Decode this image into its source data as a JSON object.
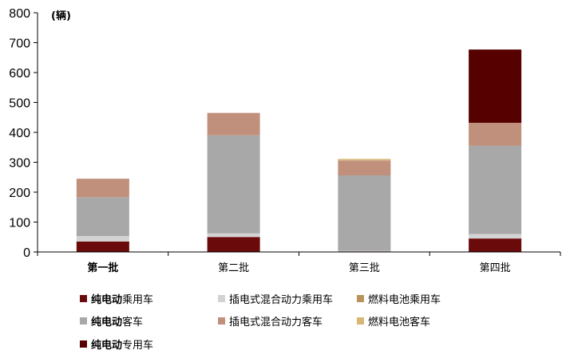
{
  "chart_data": {
    "type": "bar",
    "stacked": true,
    "unit": "(辆)",
    "categories": [
      "第一批",
      "第二批",
      "第三批",
      "第四批"
    ],
    "ylim": [
      0,
      800
    ],
    "yticks": [
      0,
      100,
      200,
      300,
      400,
      500,
      600,
      700,
      800
    ],
    "series": [
      {
        "name_bold": "纯电动",
        "name_rest": "乘用车",
        "color": "#6b0a0a",
        "values": [
          35,
          50,
          2,
          45
        ]
      },
      {
        "name_bold": "",
        "name_rest": "插电式混合动力乘用车",
        "color": "#d3d3d3",
        "values": [
          18,
          12,
          2,
          15
        ]
      },
      {
        "name_bold": "",
        "name_rest": "燃料电池乘用车",
        "color": "#b8935a",
        "values": [
          0,
          0,
          0,
          0
        ]
      },
      {
        "name_bold": "纯电动",
        "name_rest": "客车",
        "color": "#a8a8a8",
        "values": [
          130,
          328,
          252,
          295
        ]
      },
      {
        "name_bold": "",
        "name_rest": "插电式混合动力客车",
        "color": "#c0907c",
        "values": [
          62,
          75,
          50,
          77
        ]
      },
      {
        "name_bold": "",
        "name_rest": "燃料电池客车",
        "color": "#d8b676",
        "values": [
          0,
          0,
          5,
          0
        ]
      },
      {
        "name_bold": "纯电动",
        "name_rest": "专用车",
        "color": "#560000",
        "values": [
          0,
          0,
          0,
          245
        ]
      }
    ]
  }
}
